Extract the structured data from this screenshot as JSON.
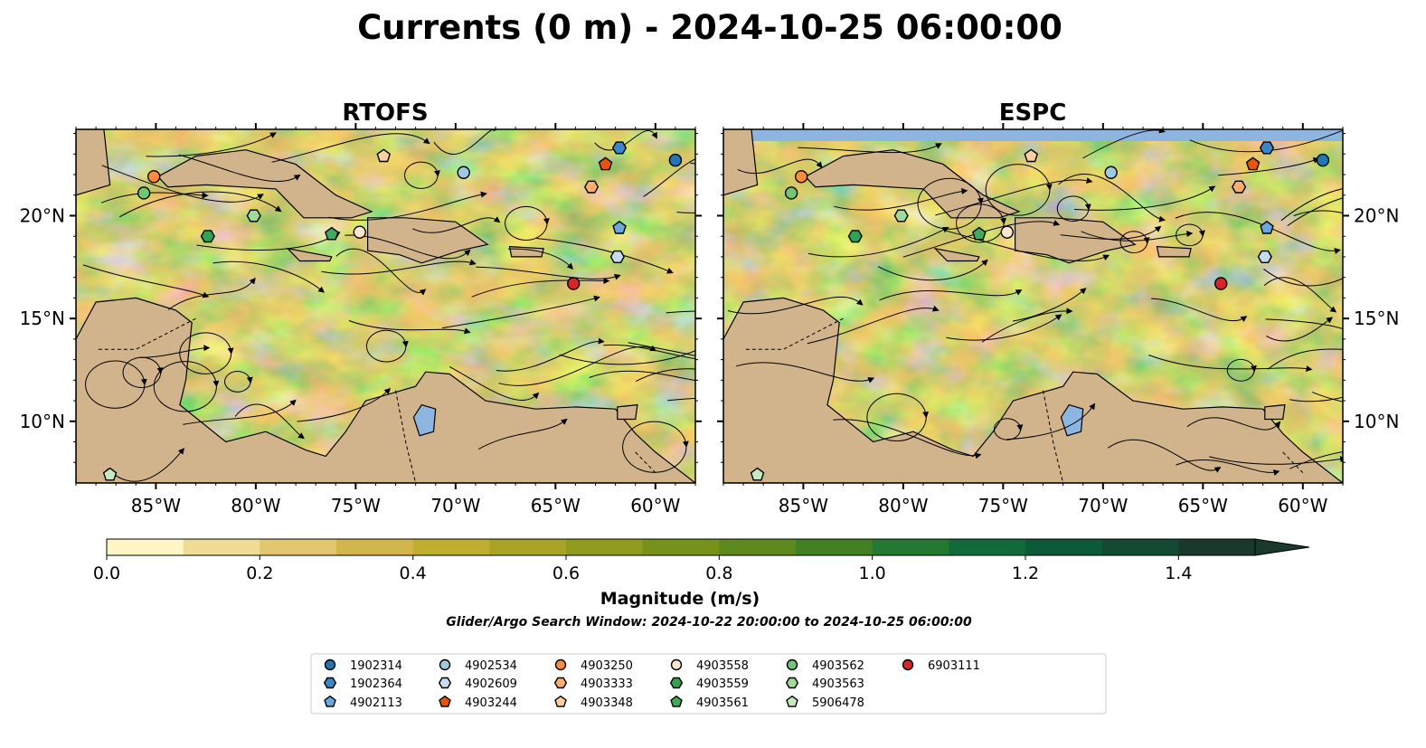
{
  "title": "Currents (0 m) - 2024-10-25 06:00:00",
  "panels": [
    {
      "title": "RTOFS"
    },
    {
      "title": "ESPC"
    }
  ],
  "colorbar": {
    "label": "Magnitude (m/s)",
    "ticks": [
      "0.0",
      "0.2",
      "0.4",
      "0.6",
      "0.8",
      "1.0",
      "1.2",
      "1.4"
    ],
    "levels": [
      0.0,
      0.1,
      0.2,
      0.3,
      0.4,
      0.5,
      0.6,
      0.7,
      0.8,
      0.9,
      1.0,
      1.1,
      1.2,
      1.3,
      1.4,
      1.5
    ],
    "colors": [
      "#fef6c4",
      "#f0dd95",
      "#e2c770",
      "#d3b64b",
      "#c0ae2e",
      "#a9a425",
      "#8f9b1d",
      "#76921a",
      "#5e8a1d",
      "#428123",
      "#257832",
      "#106a3a",
      "#0d5a38",
      "#134a34",
      "#18392b"
    ],
    "extend": "max"
  },
  "subtitle": "Glider/Argo Search Window: 2024-10-22 20:00:00 to 2024-10-25 06:00:00",
  "lon_ticks": [
    "85°W",
    "80°W",
    "75°W",
    "70°W",
    "65°W",
    "60°W"
  ],
  "lat_ticks": [
    "20°N",
    "15°N",
    "10°N"
  ],
  "colors": {
    "land": "#d2b48c",
    "water": "#8eb5e0",
    "ocean_low": "#fef6c4"
  },
  "chart_data": {
    "type": "heatmap",
    "title": "Currents (0 m) - 2024-10-25 06:00:00",
    "xlim": [
      -89,
      -58
    ],
    "ylim": [
      7,
      24.2
    ],
    "colorbar_range": [
      0,
      1.5
    ],
    "legend_position": "bottom",
    "floats": [
      {
        "id": "1902314",
        "marker": "circle",
        "color": "#1f77b4",
        "lon": -59,
        "lat": 22.7
      },
      {
        "id": "1902364",
        "marker": "hexagon",
        "color": "#3a86c8",
        "lon": -61.8,
        "lat": 23.3
      },
      {
        "id": "4902113",
        "marker": "pentagon",
        "color": "#6aa7dc",
        "lon": -61.8,
        "lat": 19.4
      },
      {
        "id": "4902534",
        "marker": "circle",
        "color": "#9ecae1",
        "lon": -69.6,
        "lat": 22.1
      },
      {
        "id": "4902609",
        "marker": "hexagon",
        "color": "#c6dbef",
        "lon": -61.9,
        "lat": 18
      },
      {
        "id": "4903244",
        "marker": "pentagon",
        "color": "#e6550d",
        "lon": -62.5,
        "lat": 22.5
      },
      {
        "id": "4903250",
        "marker": "circle",
        "color": "#fd8d3c",
        "lon": -85.1,
        "lat": 21.9
      },
      {
        "id": "4903333",
        "marker": "hexagon",
        "color": "#fdae6b",
        "lon": -63.2,
        "lat": 21.4
      },
      {
        "id": "4903348",
        "marker": "pentagon",
        "color": "#fdd0a2",
        "lon": -73.6,
        "lat": 22.9
      },
      {
        "id": "4903558",
        "marker": "circle",
        "color": "#fee6ce",
        "lon": -74.8,
        "lat": 19.2
      },
      {
        "id": "4903559",
        "marker": "hexagon",
        "color": "#31a354",
        "lon": -82.4,
        "lat": 19
      },
      {
        "id": "4903561",
        "marker": "pentagon",
        "color": "#41ab5d",
        "lon": -76.2,
        "lat": 19.1
      },
      {
        "id": "4903562",
        "marker": "circle",
        "color": "#74c476",
        "lon": -85.6,
        "lat": 21.1
      },
      {
        "id": "4903563",
        "marker": "hexagon",
        "color": "#a1d99b",
        "lon": -80.1,
        "lat": 20
      },
      {
        "id": "5906478",
        "marker": "pentagon",
        "color": "#c7e9c0",
        "lon": -87.3,
        "lat": 7.4
      },
      {
        "id": "6903111",
        "marker": "circle",
        "color": "#d62728",
        "lon": -64.1,
        "lat": 16.7
      }
    ]
  }
}
